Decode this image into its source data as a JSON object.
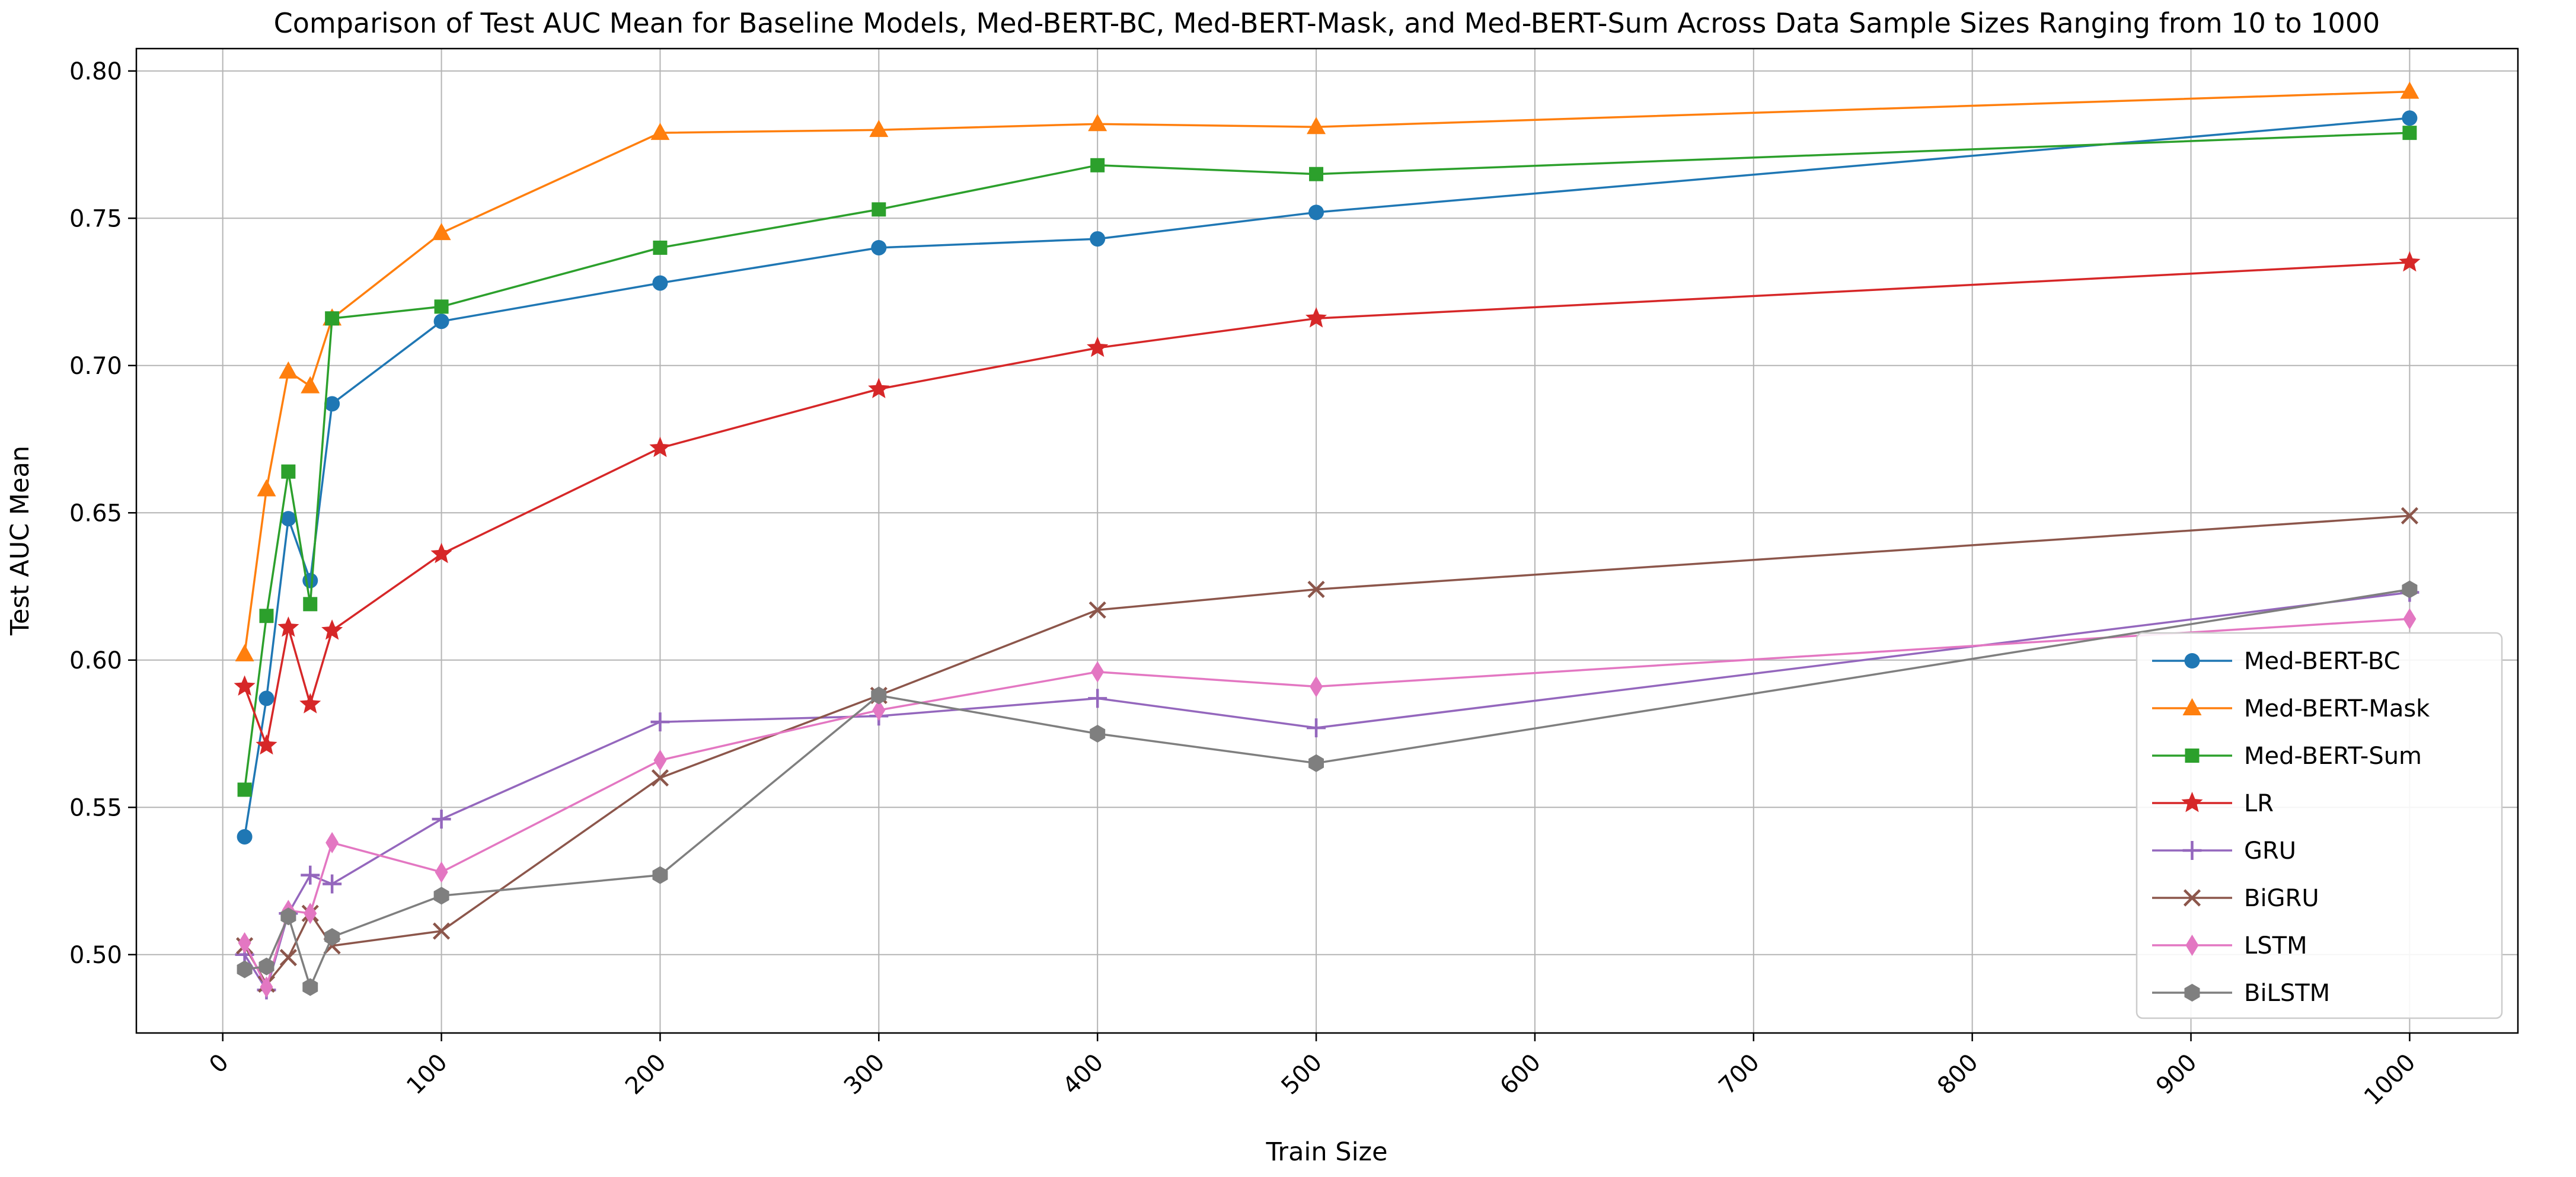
{
  "figure": {
    "title": "Comparison of Test AUC Mean for Baseline Models, Med-BERT-BC, Med-BERT-Mask, and Med-BERT-Sum Across Data Sample Sizes Ranging from 10 to 1000",
    "xlabel": "Train Size",
    "ylabel": "Test AUC Mean"
  },
  "chart_data": {
    "type": "line",
    "title": "Comparison of Test AUC Mean for Baseline Models, Med-BERT-BC, Med-BERT-Mask, and Med-BERT-Sum Across Data Sample Sizes Ranging from 10 to 1000",
    "xlabel": "Train Size",
    "ylabel": "Test AUC Mean",
    "x": [
      10,
      20,
      30,
      40,
      50,
      100,
      200,
      300,
      400,
      500,
      1000
    ],
    "series": [
      {
        "name": "Med-BERT-BC",
        "color": "#1f77b4",
        "marker": "circle",
        "values": [
          0.54,
          0.587,
          0.648,
          0.627,
          0.687,
          0.715,
          0.728,
          0.74,
          0.743,
          0.752,
          0.784
        ]
      },
      {
        "name": "Med-BERT-Mask",
        "color": "#ff7f0e",
        "marker": "triangle",
        "values": [
          0.602,
          0.658,
          0.698,
          0.693,
          0.716,
          0.745,
          0.779,
          0.78,
          0.782,
          0.781,
          0.793
        ]
      },
      {
        "name": "Med-BERT-Sum",
        "color": "#2ca02c",
        "marker": "square",
        "values": [
          0.556,
          0.615,
          0.664,
          0.619,
          0.716,
          0.72,
          0.74,
          0.753,
          0.768,
          0.765,
          0.779
        ]
      },
      {
        "name": "LR",
        "color": "#d62728",
        "marker": "star",
        "values": [
          0.591,
          0.571,
          0.611,
          0.585,
          0.61,
          0.636,
          0.672,
          0.692,
          0.706,
          0.716,
          0.735
        ]
      },
      {
        "name": "GRU",
        "color": "#9467bd",
        "marker": "plus",
        "values": [
          0.5,
          0.488,
          0.514,
          0.527,
          0.524,
          0.546,
          0.579,
          0.581,
          0.587,
          0.577,
          0.623
        ]
      },
      {
        "name": "BiGRU",
        "color": "#8c564b",
        "marker": "x",
        "values": [
          0.503,
          0.49,
          0.499,
          0.514,
          0.503,
          0.508,
          0.56,
          0.588,
          0.617,
          0.624,
          0.649
        ]
      },
      {
        "name": "LSTM",
        "color": "#e377c2",
        "marker": "diamond",
        "values": [
          0.504,
          0.489,
          0.515,
          0.514,
          0.538,
          0.528,
          0.566,
          0.583,
          0.596,
          0.591,
          0.614
        ]
      },
      {
        "name": "BiLSTM",
        "color": "#7f7f7f",
        "marker": "hexagon",
        "values": [
          0.495,
          0.496,
          0.513,
          0.489,
          0.506,
          0.52,
          0.527,
          0.588,
          0.575,
          0.565,
          0.624
        ]
      }
    ],
    "x_ticks": [
      0,
      100,
      200,
      300,
      400,
      500,
      600,
      700,
      800,
      900,
      1000
    ],
    "y_ticks": [
      0.5,
      0.55,
      0.6,
      0.65,
      0.7,
      0.75,
      0.8
    ],
    "xlim": [
      -39.5,
      1049.5
    ],
    "ylim": [
      0.4734,
      0.8076
    ],
    "grid": true,
    "grid_color": "#b4b4b4",
    "spine_color": "#000000",
    "legend_position": "lower right",
    "legend_border_color": "#cccccc",
    "x_tick_rotation_deg": 45
  }
}
